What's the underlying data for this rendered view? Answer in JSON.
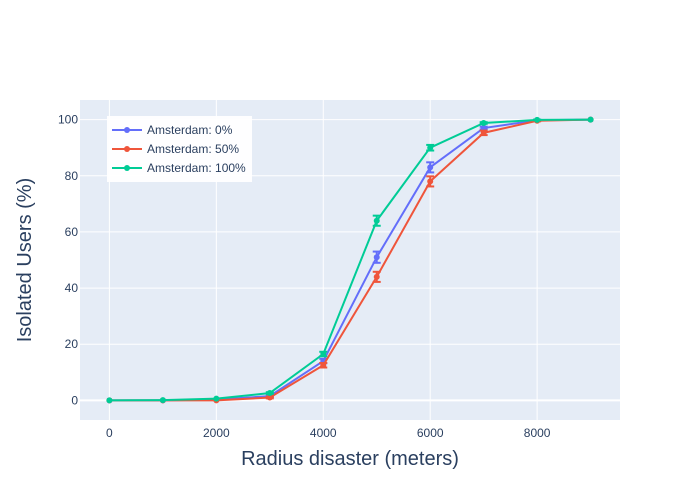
{
  "chart_data": {
    "type": "line",
    "title": "",
    "xlabel": "Radius disaster (meters)",
    "ylabel": "Isolated Users (%)",
    "x": [
      0,
      1000,
      2000,
      3000,
      4000,
      5000,
      6000,
      7000,
      8000,
      9000
    ],
    "xlim": [
      -550,
      9550
    ],
    "ylim": [
      -7,
      107
    ],
    "xticks": [
      0,
      2000,
      4000,
      6000,
      8000
    ],
    "xtick_labels": [
      "0",
      "2000",
      "4000",
      "6000",
      "8000"
    ],
    "yticks": [
      0,
      20,
      40,
      60,
      80,
      100
    ],
    "ytick_labels": [
      "0",
      "20",
      "40",
      "60",
      "80",
      "100"
    ],
    "grid": true,
    "legend_position": "top-left",
    "series": [
      {
        "name": "Amsterdam: 0%",
        "color": "#636efa",
        "values": [
          0,
          0,
          0.3,
          1.5,
          14,
          51,
          83,
          97,
          99.8,
          100
        ],
        "error": [
          0,
          0,
          0,
          0.3,
          0.8,
          2,
          1.8,
          0.5,
          0.2,
          0
        ]
      },
      {
        "name": "Amsterdam: 50%",
        "color": "#ef553b",
        "values": [
          0,
          0,
          0,
          1,
          12.5,
          44,
          78,
          95.3,
          99.6,
          100
        ],
        "error": [
          0,
          0,
          0,
          0.3,
          0.8,
          1.8,
          1.8,
          0.8,
          0.2,
          0
        ]
      },
      {
        "name": "Amsterdam: 100%",
        "color": "#00cc96",
        "values": [
          0,
          0.1,
          0.6,
          2.6,
          16.5,
          64,
          90,
          98.8,
          99.9,
          100
        ],
        "error": [
          0,
          0,
          0,
          0.3,
          0.8,
          1.8,
          1,
          0.3,
          0.1,
          0
        ]
      }
    ]
  }
}
